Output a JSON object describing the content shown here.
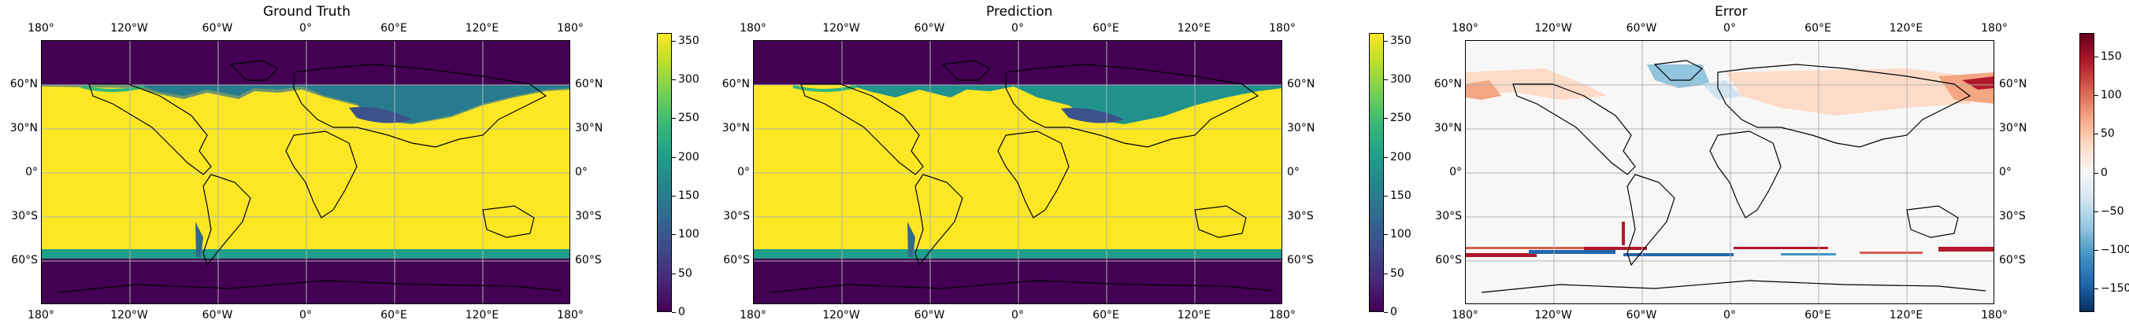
{
  "panels": [
    {
      "title": "Ground Truth",
      "colormap": "viridis",
      "colorbar": {
        "ticks": [
          "0",
          "50",
          "100",
          "150",
          "200",
          "250",
          "300",
          "350"
        ],
        "values": [
          0,
          50,
          100,
          150,
          200,
          250,
          300,
          350
        ],
        "range": [
          0,
          360
        ]
      }
    },
    {
      "title": "Prediction",
      "colormap": "viridis",
      "colorbar": {
        "ticks": [
          "0",
          "50",
          "100",
          "150",
          "200",
          "250",
          "300",
          "350"
        ],
        "values": [
          0,
          50,
          100,
          150,
          200,
          250,
          300,
          350
        ],
        "range": [
          0,
          360
        ]
      }
    },
    {
      "title": "Error",
      "colormap": "RdBu_r",
      "colorbar": {
        "ticks": [
          "−150",
          "−100",
          "−50",
          "0",
          "50",
          "100",
          "150"
        ],
        "values": [
          -150,
          -100,
          -50,
          0,
          50,
          100,
          150
        ],
        "range": [
          -180,
          180
        ]
      }
    }
  ],
  "lon_ticks": [
    "180°",
    "120°W",
    "60°W",
    "0°",
    "60°E",
    "120°E",
    "180°"
  ],
  "lat_ticks": [
    "60°N",
    "30°N",
    "0°",
    "30°S",
    "60°S"
  ],
  "colors": {
    "viridis": [
      "#440154",
      "#482878",
      "#3e4989",
      "#31688e",
      "#26828e",
      "#1f9e89",
      "#35b779",
      "#6ece58",
      "#b5de2b",
      "#fde725"
    ],
    "rdbu": [
      "#053061",
      "#2166ac",
      "#4393c3",
      "#92c5de",
      "#d1e5f0",
      "#f7f7f7",
      "#fddbc7",
      "#f4a582",
      "#d6604d",
      "#b2182b",
      "#67001f"
    ],
    "grid": "#b0b0b0",
    "coast": "#000000"
  }
}
